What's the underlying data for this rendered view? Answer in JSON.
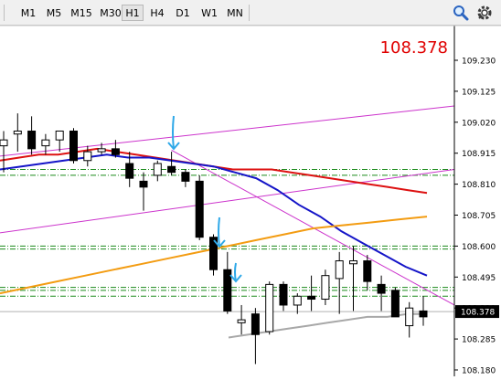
{
  "toolbar": {
    "timeframes": [
      "M1",
      "M5",
      "M15",
      "M30",
      "H1",
      "H4",
      "D1",
      "W1",
      "MN"
    ],
    "active": "H1",
    "search_icon": "search-icon",
    "settings_icon": "settings-icon"
  },
  "price_display": "108.378",
  "colors": {
    "candle_up": "#ffffff",
    "candle_down": "#000000",
    "ma_red": "#dd1111",
    "ma_blue": "#1515c8",
    "ma_orange": "#f39c12",
    "ma_gray": "#a8a8a8",
    "channel": "#cc33cc",
    "levels": "#1a8a1a",
    "arrows": "#2ea8e8",
    "current_price": "#000000"
  },
  "chart_data": {
    "type": "candlestick",
    "y_axis_ticks": [
      "109.230",
      "109.125",
      "109.020",
      "108.915",
      "108.810",
      "108.705",
      "108.600",
      "108.495",
      "108.390",
      "108.285",
      "108.180"
    ],
    "ylim": [
      108.18,
      109.3
    ],
    "current_price": "108.378",
    "candles": [
      {
        "o": 108.94,
        "h": 108.99,
        "l": 108.85,
        "c": 108.96
      },
      {
        "o": 108.98,
        "h": 109.05,
        "l": 108.92,
        "c": 108.99
      },
      {
        "o": 108.99,
        "h": 109.04,
        "l": 108.91,
        "c": 108.93
      },
      {
        "o": 108.94,
        "h": 108.98,
        "l": 108.91,
        "c": 108.96
      },
      {
        "o": 108.96,
        "h": 108.98,
        "l": 108.92,
        "c": 108.99
      },
      {
        "o": 108.99,
        "h": 109.0,
        "l": 108.88,
        "c": 108.89
      },
      {
        "o": 108.89,
        "h": 108.94,
        "l": 108.87,
        "c": 108.92
      },
      {
        "o": 108.92,
        "h": 108.95,
        "l": 108.91,
        "c": 108.93
      },
      {
        "o": 108.93,
        "h": 108.96,
        "l": 108.9,
        "c": 108.91
      },
      {
        "o": 108.88,
        "h": 108.92,
        "l": 108.8,
        "c": 108.83
      },
      {
        "o": 108.82,
        "h": 108.85,
        "l": 108.72,
        "c": 108.8
      },
      {
        "o": 108.84,
        "h": 108.89,
        "l": 108.82,
        "c": 108.88
      },
      {
        "o": 108.87,
        "h": 108.92,
        "l": 108.84,
        "c": 108.85
      },
      {
        "o": 108.85,
        "h": 108.86,
        "l": 108.8,
        "c": 108.82
      },
      {
        "o": 108.82,
        "h": 108.84,
        "l": 108.62,
        "c": 108.63
      },
      {
        "o": 108.63,
        "h": 108.64,
        "l": 108.5,
        "c": 108.52
      },
      {
        "o": 108.52,
        "h": 108.58,
        "l": 108.37,
        "c": 108.38
      },
      {
        "o": 108.34,
        "h": 108.4,
        "l": 108.3,
        "c": 108.35
      },
      {
        "o": 108.37,
        "h": 108.39,
        "l": 108.2,
        "c": 108.3
      },
      {
        "o": 108.31,
        "h": 108.48,
        "l": 108.3,
        "c": 108.47
      },
      {
        "o": 108.47,
        "h": 108.48,
        "l": 108.38,
        "c": 108.4
      },
      {
        "o": 108.4,
        "h": 108.44,
        "l": 108.37,
        "c": 108.43
      },
      {
        "o": 108.43,
        "h": 108.5,
        "l": 108.38,
        "c": 108.42
      },
      {
        "o": 108.42,
        "h": 108.52,
        "l": 108.4,
        "c": 108.5
      },
      {
        "o": 108.49,
        "h": 108.58,
        "l": 108.37,
        "c": 108.55
      },
      {
        "o": 108.54,
        "h": 108.6,
        "l": 108.38,
        "c": 108.55
      },
      {
        "o": 108.55,
        "h": 108.57,
        "l": 108.45,
        "c": 108.48
      },
      {
        "o": 108.47,
        "h": 108.5,
        "l": 108.38,
        "c": 108.44
      },
      {
        "o": 108.45,
        "h": 108.46,
        "l": 108.36,
        "c": 108.36
      },
      {
        "o": 108.33,
        "h": 108.41,
        "l": 108.29,
        "c": 108.39
      },
      {
        "o": 108.38,
        "h": 108.43,
        "l": 108.33,
        "c": 108.36
      }
    ],
    "moving_averages": [
      {
        "name": "red",
        "values": [
          108.89,
          108.9,
          108.91,
          108.91,
          108.92,
          108.93,
          108.92,
          108.91,
          108.9,
          108.89,
          108.88,
          108.87,
          108.86,
          108.86,
          108.86,
          108.85,
          108.84,
          108.83,
          108.82,
          108.81,
          108.8,
          108.79,
          108.78
        ]
      },
      {
        "name": "blue",
        "values": [
          108.86,
          108.87,
          108.88,
          108.89,
          108.9,
          108.91,
          108.9,
          108.9,
          108.89,
          108.88,
          108.87,
          108.85,
          108.83,
          108.79,
          108.74,
          108.7,
          108.65,
          108.61,
          108.57,
          108.53,
          108.5
        ]
      },
      {
        "name": "orange",
        "values": [
          108.44,
          108.46,
          108.48,
          108.5,
          108.52,
          108.54,
          108.56,
          108.58,
          108.6,
          108.62,
          108.64,
          108.66,
          108.67,
          108.68,
          108.69,
          108.7
        ]
      },
      {
        "name": "gray",
        "values": [
          108.29,
          108.3,
          108.31,
          108.32,
          108.33,
          108.34,
          108.35,
          108.36,
          108.36,
          108.37,
          108.37
        ]
      }
    ],
    "horizontal_levels": [
      108.86,
      108.84,
      108.6,
      108.59,
      108.46,
      108.45,
      108.43
    ],
    "current_price_value": 108.378
  }
}
